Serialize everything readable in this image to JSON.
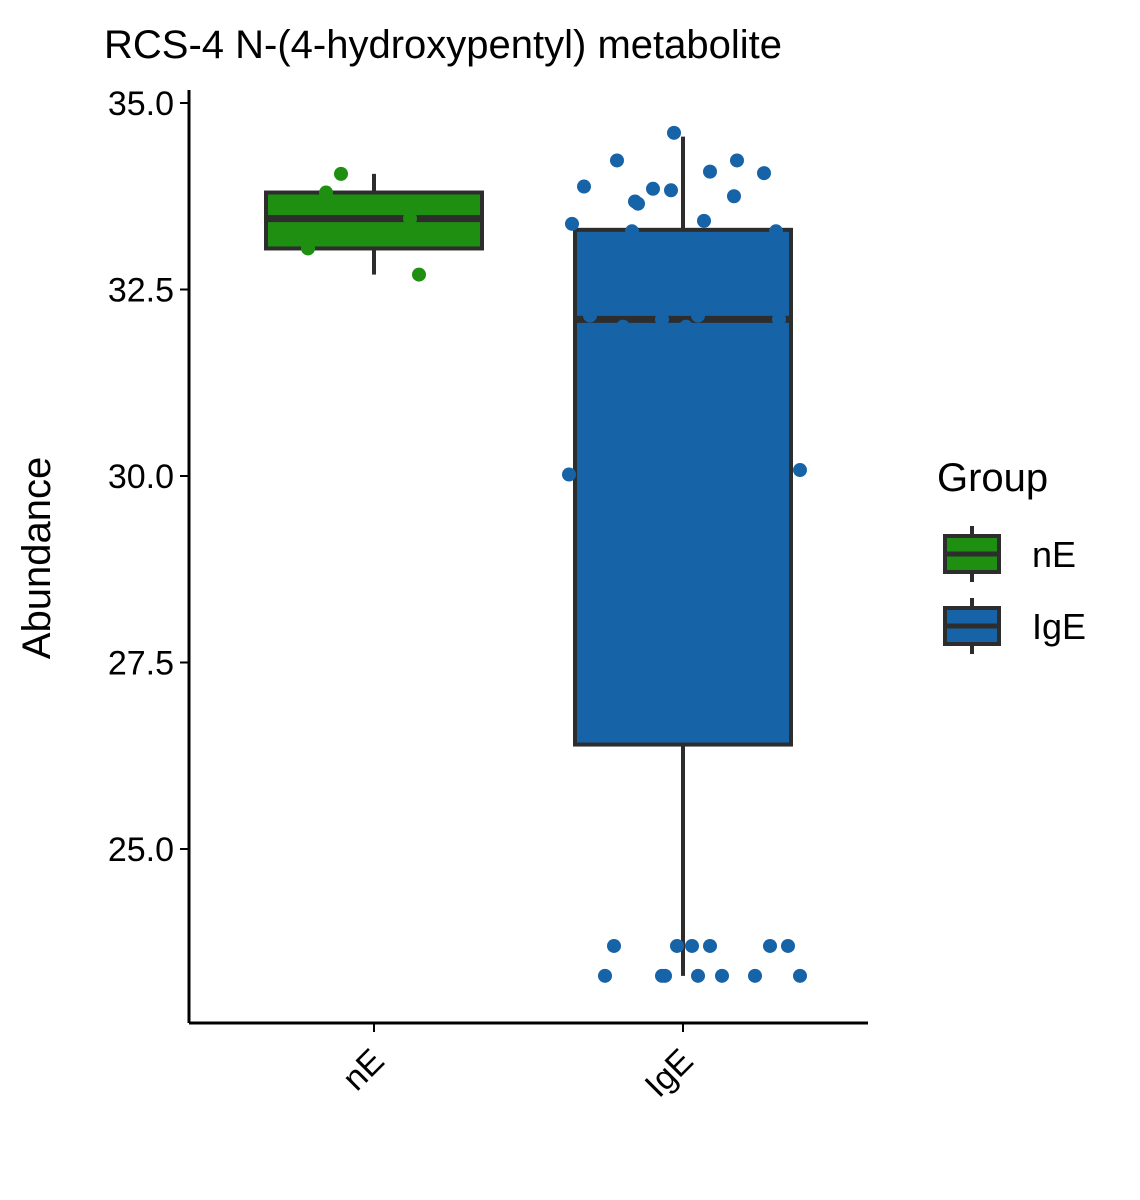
{
  "chart_data": {
    "type": "box",
    "title": "RCS-4 N-(4-hydroxypentyl) metabolite",
    "xlabel": "",
    "ylabel": "Abundance",
    "categories": [
      "nE",
      "IgE"
    ],
    "ylim": [
      22.3,
      35.2
    ],
    "yticks": [
      "25.0",
      "27.5",
      "30.0",
      "32.5",
      "35.0"
    ],
    "grid": false,
    "legend": {
      "title": "Group",
      "position": "right",
      "entries": [
        "nE",
        "IgE"
      ]
    },
    "colors": {
      "nE": "#1f8f12",
      "IgE": "#1763a8",
      "outline": "#2d2d2d"
    },
    "boxes": [
      {
        "group": "nE",
        "whisker_low": 32.7,
        "q1": 33.05,
        "median": 33.45,
        "q3": 33.8,
        "whisker_high": 34.05
      },
      {
        "group": "IgE",
        "whisker_low": 23.3,
        "q1": 26.4,
        "median": 32.1,
        "q3": 33.3,
        "whisker_high": 34.55
      }
    ],
    "series": [
      {
        "name": "nE",
        "points": [
          {
            "x": -0.22,
            "y": 33.05
          },
          {
            "x": -0.16,
            "y": 33.8
          },
          {
            "x": -0.11,
            "y": 34.05
          },
          {
            "x": 0.12,
            "y": 33.45
          },
          {
            "x": 0.15,
            "y": 32.7
          }
        ]
      },
      {
        "name": "IgE",
        "points": [
          {
            "x": -0.38,
            "y": 30.02
          },
          {
            "x": -0.37,
            "y": 33.38
          },
          {
            "x": -0.33,
            "y": 33.88
          },
          {
            "x": -0.31,
            "y": 32.15
          },
          {
            "x": -0.26,
            "y": 23.3
          },
          {
            "x": -0.23,
            "y": 23.7
          },
          {
            "x": -0.22,
            "y": 34.23
          },
          {
            "x": -0.2,
            "y": 32.0
          },
          {
            "x": -0.17,
            "y": 33.28
          },
          {
            "x": -0.16,
            "y": 33.68
          },
          {
            "x": -0.15,
            "y": 33.65
          },
          {
            "x": -0.1,
            "y": 33.85
          },
          {
            "x": -0.07,
            "y": 23.3
          },
          {
            "x": -0.07,
            "y": 32.1
          },
          {
            "x": -0.06,
            "y": 23.3
          },
          {
            "x": -0.04,
            "y": 33.83
          },
          {
            "x": -0.03,
            "y": 34.6
          },
          {
            "x": -0.02,
            "y": 23.7
          },
          {
            "x": 0.01,
            "y": 32.0
          },
          {
            "x": 0.03,
            "y": 23.7
          },
          {
            "x": 0.05,
            "y": 23.3
          },
          {
            "x": 0.05,
            "y": 32.15
          },
          {
            "x": 0.07,
            "y": 33.42
          },
          {
            "x": 0.09,
            "y": 23.7
          },
          {
            "x": 0.09,
            "y": 34.08
          },
          {
            "x": 0.13,
            "y": 23.3
          },
          {
            "x": 0.17,
            "y": 33.75
          },
          {
            "x": 0.18,
            "y": 34.23
          },
          {
            "x": 0.24,
            "y": 23.3
          },
          {
            "x": 0.27,
            "y": 34.06
          },
          {
            "x": 0.29,
            "y": 23.7
          },
          {
            "x": 0.31,
            "y": 33.28
          },
          {
            "x": 0.32,
            "y": 32.1
          },
          {
            "x": 0.32,
            "y": 33.18
          },
          {
            "x": 0.35,
            "y": 23.7
          },
          {
            "x": 0.39,
            "y": 23.3
          },
          {
            "x": 0.39,
            "y": 30.08
          }
        ]
      }
    ]
  }
}
